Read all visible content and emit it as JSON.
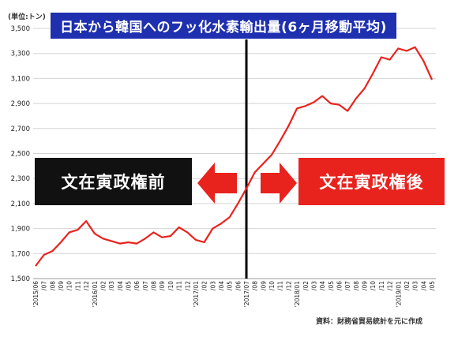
{
  "header": {
    "unit": "(単位:トン)",
    "title": "日本から韓国へのフッ化水素輸出量(6ヶ月移動平均)"
  },
  "labels": {
    "before": "文在寅政権前",
    "after": "文在寅政権後"
  },
  "source": "資料：財務省貿易統計を元に作成",
  "colors": {
    "title_bg": "#1e2fb0",
    "line": "#e8231e",
    "before_box": "#111111",
    "after_box": "#e8231e",
    "divider": "#000000"
  },
  "chart_data": {
    "type": "line",
    "ylim": [
      1500,
      3500
    ],
    "yticks": [
      1500,
      1700,
      1900,
      2100,
      2300,
      2500,
      2700,
      2900,
      3100,
      3300,
      3500
    ],
    "ytick_labels": [
      "1,500",
      "1,700",
      "1,900",
      "2,100",
      "2,300",
      "2,500",
      "2,700",
      "2,900",
      "3,100",
      "3,300",
      "3,500"
    ],
    "grid": true,
    "divider_at": "'2017/07",
    "categories": [
      "'2015/06",
      "/07",
      "/08",
      "/09",
      "/10",
      "/11",
      "/12",
      "'2016/01",
      "/02",
      "/03",
      "/04",
      "/05",
      "/06",
      "/07",
      "/08",
      "/09",
      "/10",
      "/11",
      "/12",
      "'2017/01",
      "/02",
      "/03",
      "/04",
      "/05",
      "/06",
      "'2017/07",
      "/08",
      "/09",
      "/10",
      "/11",
      "/12",
      "'2018/01",
      "/02",
      "/03",
      "/04",
      "/05",
      "/06",
      "/07",
      "/08",
      "/09",
      "/10",
      "/11",
      "/12",
      "'2019/01",
      "/02",
      "/03",
      "/04",
      "/05"
    ],
    "series": [
      {
        "values": [
          1600,
          1690,
          1720,
          1790,
          1870,
          1890,
          1960,
          1860,
          1820,
          1800,
          1780,
          1790,
          1780,
          1820,
          1870,
          1830,
          1840,
          1910,
          1870,
          1810,
          1790,
          1900,
          1940,
          1990,
          2100,
          2220,
          2350,
          2420,
          2490,
          2600,
          2720,
          2860,
          2880,
          2910,
          2960,
          2900,
          2890,
          2840,
          2940,
          3020,
          3140,
          3270,
          3250,
          3340,
          3320,
          3350,
          3240,
          3090
        ]
      }
    ]
  }
}
